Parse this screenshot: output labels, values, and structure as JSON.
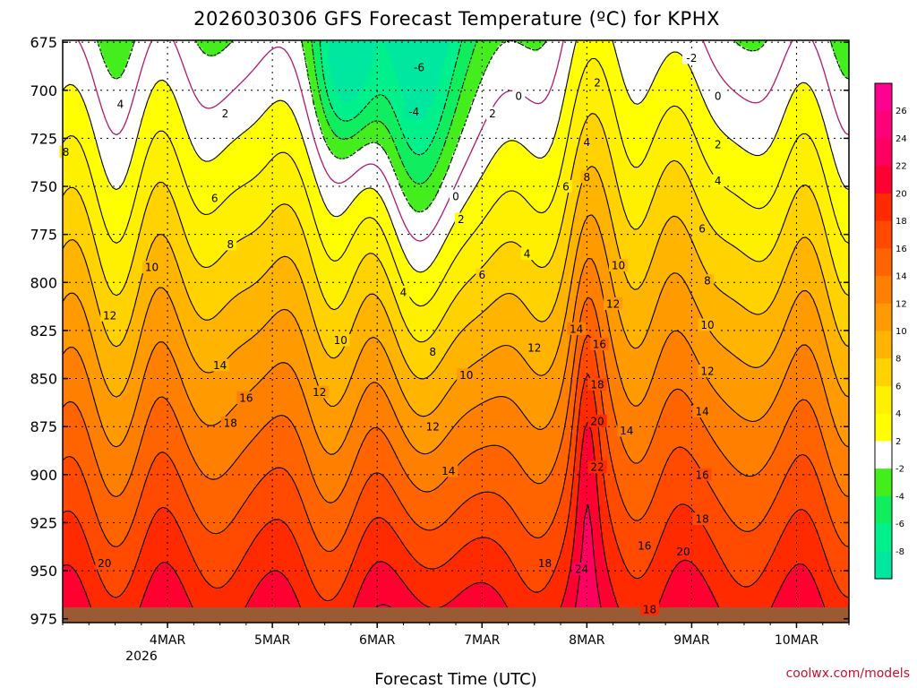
{
  "chart_data": {
    "type": "heatmap",
    "title": "2026030306 GFS Forecast Temperature (ºC) for KPHX",
    "xlabel": "Forecast Time (UTC)",
    "ylabel": "",
    "credit": "coolwx.com/models",
    "x_ticks": [
      "4MAR",
      "5MAR",
      "6MAR",
      "7MAR",
      "8MAR",
      "9MAR",
      "10MAR"
    ],
    "x_year_label": "2026",
    "x_days": [
      1,
      2,
      3,
      4,
      5,
      6,
      7
    ],
    "xlim": [
      0,
      7.5
    ],
    "y_ticks": [
      675,
      700,
      725,
      750,
      775,
      800,
      825,
      850,
      875,
      900,
      925,
      950,
      975
    ],
    "ylim": [
      977,
      674
    ],
    "colorbar_ticks": [
      26,
      24,
      22,
      20,
      18,
      16,
      14,
      12,
      10,
      8,
      6,
      4,
      2,
      -2,
      -4,
      -6,
      -8
    ],
    "color_levels": [
      {
        "min": -10,
        "max": -8,
        "color": "#00e8a0"
      },
      {
        "min": -8,
        "max": -6,
        "color": "#00f08c"
      },
      {
        "min": -6,
        "max": -4,
        "color": "#10ee60"
      },
      {
        "min": -4,
        "max": -2,
        "color": "#44ee1c"
      },
      {
        "min": -2,
        "max": 0,
        "color": "#ffffff"
      },
      {
        "min": 0,
        "max": 2,
        "color": "#ffffff"
      },
      {
        "min": 2,
        "max": 4,
        "color": "#ffff00"
      },
      {
        "min": 4,
        "max": 6,
        "color": "#fff000"
      },
      {
        "min": 6,
        "max": 8,
        "color": "#ffd200"
      },
      {
        "min": 8,
        "max": 10,
        "color": "#ffb400"
      },
      {
        "min": 10,
        "max": 12,
        "color": "#ff9a00"
      },
      {
        "min": 12,
        "max": 14,
        "color": "#ff8000"
      },
      {
        "min": 14,
        "max": 16,
        "color": "#ff6400"
      },
      {
        "min": 16,
        "max": 18,
        "color": "#ff4a00"
      },
      {
        "min": 18,
        "max": 20,
        "color": "#ff2a00"
      },
      {
        "min": 20,
        "max": 22,
        "color": "#ff0030"
      },
      {
        "min": 22,
        "max": 24,
        "color": "#ff0060"
      },
      {
        "min": 24,
        "max": 26,
        "color": "#ff0078"
      },
      {
        "min": 26,
        "max": 28,
        "color": "#ff0090"
      }
    ],
    "contour_labels": [
      {
        "t": 0.55,
        "p": 707,
        "label": "4"
      },
      {
        "t": 0.03,
        "p": 732,
        "label": "8"
      },
      {
        "t": 1.55,
        "p": 712,
        "label": "2"
      },
      {
        "t": 1.45,
        "p": 756,
        "label": "6"
      },
      {
        "t": 1.6,
        "p": 780,
        "label": "8"
      },
      {
        "t": 0.85,
        "p": 792,
        "label": "10"
      },
      {
        "t": 0.45,
        "p": 817,
        "label": "12"
      },
      {
        "t": 1.5,
        "p": 843,
        "label": "14"
      },
      {
        "t": 1.75,
        "p": 860,
        "label": "16"
      },
      {
        "t": 1.6,
        "p": 873,
        "label": "18"
      },
      {
        "t": 0.4,
        "p": 946,
        "label": "20"
      },
      {
        "t": 2.65,
        "p": 830,
        "label": "10"
      },
      {
        "t": 2.45,
        "p": 857,
        "label": "12"
      },
      {
        "t": 3.25,
        "p": 805,
        "label": "4"
      },
      {
        "t": 3.53,
        "p": 836,
        "label": "8"
      },
      {
        "t": 3.53,
        "p": 875,
        "label": "12"
      },
      {
        "t": 3.68,
        "p": 898,
        "label": "14"
      },
      {
        "t": 3.85,
        "p": 848,
        "label": "10"
      },
      {
        "t": 4.0,
        "p": 796,
        "label": "6"
      },
      {
        "t": 4.43,
        "p": 785,
        "label": "4"
      },
      {
        "t": 3.8,
        "p": 767,
        "label": "2"
      },
      {
        "t": 3.75,
        "p": 755,
        "label": "0"
      },
      {
        "t": 4.1,
        "p": 712,
        "label": "2"
      },
      {
        "t": 3.4,
        "p": 688,
        "label": "-6"
      },
      {
        "t": 3.35,
        "p": 711,
        "label": "-4"
      },
      {
        "t": 4.5,
        "p": 834,
        "label": "12"
      },
      {
        "t": 4.9,
        "p": 824,
        "label": "14"
      },
      {
        "t": 5.12,
        "p": 832,
        "label": "16"
      },
      {
        "t": 5.1,
        "p": 853,
        "label": "18"
      },
      {
        "t": 5.1,
        "p": 872,
        "label": "20"
      },
      {
        "t": 5.1,
        "p": 896,
        "label": "22"
      },
      {
        "t": 4.95,
        "p": 949,
        "label": "24"
      },
      {
        "t": 4.6,
        "p": 946,
        "label": "18"
      },
      {
        "t": 5.25,
        "p": 811,
        "label": "12"
      },
      {
        "t": 5.3,
        "p": 791,
        "label": "10"
      },
      {
        "t": 4.8,
        "p": 750,
        "label": "6"
      },
      {
        "t": 5.0,
        "p": 745,
        "label": "8"
      },
      {
        "t": 5.0,
        "p": 727,
        "label": "4"
      },
      {
        "t": 5.1,
        "p": 696,
        "label": "2"
      },
      {
        "t": 4.35,
        "p": 703,
        "label": "0"
      },
      {
        "t": 5.38,
        "p": 877,
        "label": "14"
      },
      {
        "t": 5.55,
        "p": 937,
        "label": "16"
      },
      {
        "t": 5.6,
        "p": 970,
        "label": "18"
      },
      {
        "t": 6.1,
        "p": 900,
        "label": "16"
      },
      {
        "t": 6.1,
        "p": 923,
        "label": "18"
      },
      {
        "t": 5.92,
        "p": 940,
        "label": "20"
      },
      {
        "t": 6.1,
        "p": 867,
        "label": "14"
      },
      {
        "t": 6.15,
        "p": 846,
        "label": "12"
      },
      {
        "t": 6.15,
        "p": 822,
        "label": "10"
      },
      {
        "t": 6.15,
        "p": 799,
        "label": "8"
      },
      {
        "t": 6.1,
        "p": 772,
        "label": "6"
      },
      {
        "t": 6.25,
        "p": 747,
        "label": "4"
      },
      {
        "t": 6.25,
        "p": 728,
        "label": "2"
      },
      {
        "t": 6.25,
        "p": 703,
        "label": "0"
      },
      {
        "t": 6.0,
        "p": 683,
        "label": "-2"
      }
    ]
  }
}
